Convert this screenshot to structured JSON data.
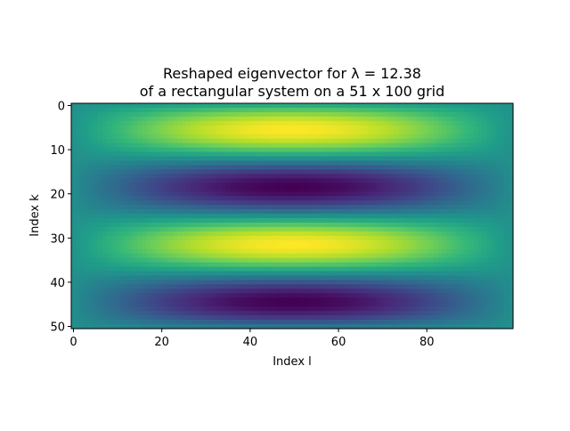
{
  "chart_data": {
    "type": "heatmap",
    "title_line1": "Reshaped eigenvector for λ = 12.38",
    "title_line2": "of a rectangular system on a 51 x 100 grid",
    "xlabel": "Index l",
    "ylabel": "Index k",
    "rows": 51,
    "cols": 100,
    "xlim": [
      -0.5,
      99.5
    ],
    "ylim": [
      50.5,
      -0.5
    ],
    "x_ticks": [
      0,
      20,
      40,
      60,
      80
    ],
    "y_ticks": [
      0,
      10,
      20,
      30,
      40,
      50
    ],
    "mode": "sin(pi*(l+1)/101) * sin(4*pi*(k+1)/52)",
    "colormap": "viridis",
    "colormap_stops": [
      "#440154",
      "#482878",
      "#3e4989",
      "#31688e",
      "#26828e",
      "#1f9e89",
      "#35b779",
      "#6ece58",
      "#b5de2b",
      "#fde725"
    ]
  }
}
